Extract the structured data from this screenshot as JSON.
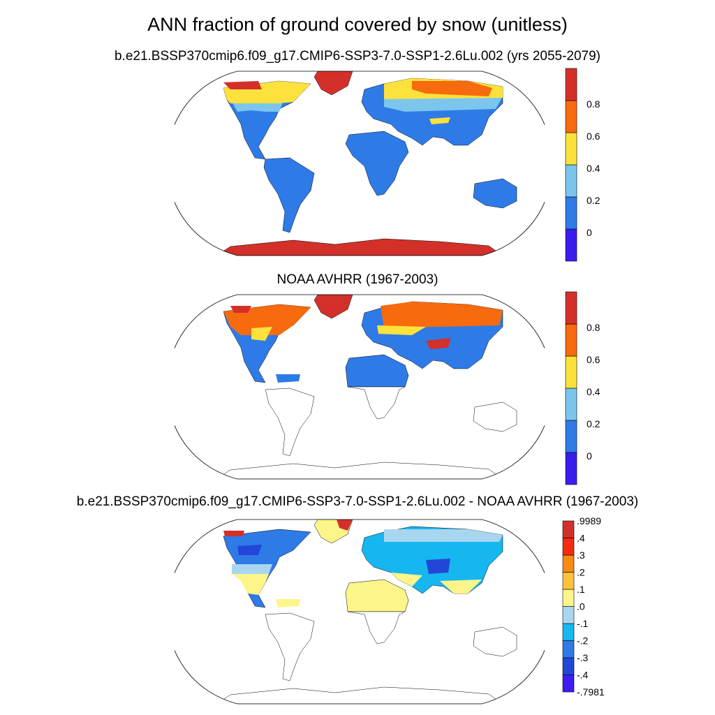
{
  "title": "ANN fraction of ground covered by snow (unitless)",
  "panels": [
    {
      "title": "b.e21.BSSP370cmip6.f09_g17.CMIP6-SSP3-7.0-SSP1-2.6Lu.002 (yrs 2055-2079)",
      "colorbar": {
        "colors": [
          "#3b1cf0",
          "#2e7be8",
          "#7cc6ee",
          "#fde13c",
          "#f76a0e",
          "#d3302a"
        ],
        "labels": [
          "0",
          "0.2",
          "0.4",
          "0.6",
          "0.8"
        ]
      }
    },
    {
      "title": "NOAA AVHRR (1967-2003)",
      "colorbar": {
        "colors": [
          "#3b1cf0",
          "#2e7be8",
          "#7cc6ee",
          "#fde13c",
          "#f76a0e",
          "#d3302a"
        ],
        "labels": [
          "0",
          "0.2",
          "0.4",
          "0.6",
          "0.8"
        ]
      }
    },
    {
      "title": "b.e21.BSSP370cmip6.f09_g17.CMIP6-SSP3-7.0-SSP1-2.6Lu.002 - NOAA AVHRR (1967-2003)",
      "colorbar": {
        "colors": [
          "#3f1cf0",
          "#2246d8",
          "#2f7ae8",
          "#16b7f0",
          "#a9d6ef",
          "#fdf58a",
          "#fdc23c",
          "#f98a14",
          "#f52b0f",
          "#d3302a"
        ],
        "labels": [
          ".9989",
          ".4",
          ".3",
          ".2",
          ".1",
          ".0",
          "-.1",
          "-.2",
          "-.3",
          "-.4",
          "-.7981"
        ]
      }
    }
  ]
}
